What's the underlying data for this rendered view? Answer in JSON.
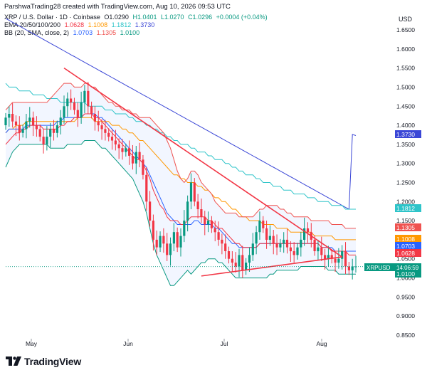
{
  "header": {
    "text": "ParshwaTrading28 created with TradingView.com, Aug 10, 2026 09:53 UTC"
  },
  "legend": {
    "symbol": {
      "label": "XRP / U.S. Dollar · 1D · Coinbase",
      "o": "O1.0290",
      "h": "H1.0401",
      "l": "L1.0270",
      "c": "C1.0296",
      "chg": "+0.0004 (+0.04%)"
    },
    "ema": {
      "label": "EMA 20/50/100/200",
      "v20": "1.0628",
      "v50": "1.1008",
      "v100": "1.1812",
      "v200": "1.3730"
    },
    "bb": {
      "label": "BB (20, SMA, close, 2)",
      "basis": "1.0703",
      "upper": "1.1305",
      "lower": "1.0100"
    }
  },
  "axis": {
    "currency": "USD",
    "y_ticks": [
      "1.6500",
      "1.6000",
      "1.5500",
      "1.5000",
      "1.4500",
      "1.4000",
      "1.3500",
      "1.3000",
      "1.2500",
      "1.2000",
      "1.1500",
      "1.1000",
      "1.0500",
      "1.0000",
      "0.9500",
      "0.9000",
      "0.8500"
    ],
    "x_ticks": [
      "May",
      "Jun",
      "Jul",
      "Aug"
    ]
  },
  "price_tags": [
    {
      "text": "1.3730",
      "color": "#3a46d6"
    },
    {
      "text": "1.1812",
      "color": "#2ec4c9"
    },
    {
      "text": "1.1305",
      "color": "#ef5350"
    },
    {
      "text": "1.1008",
      "color": "#ff9800"
    },
    {
      "text": "1.0703",
      "color": "#2962ff"
    },
    {
      "text": "1.0628",
      "color": "#f23645"
    },
    {
      "text": "1.0100",
      "color": "#089981"
    }
  ],
  "symbol_tag": {
    "label": "XRPUSD",
    "price": "14:06:59",
    "color": "#089981"
  },
  "brand": {
    "name": "TradingView"
  },
  "chart_data": {
    "type": "candlestick",
    "ylim": [
      0.83,
      1.68
    ],
    "y_scale": "linear",
    "grid": false,
    "colors": {
      "up": "#089981",
      "down": "#f23645",
      "ema20": "#f23645",
      "ema50": "#ff9800",
      "ema100": "#2ec4c9",
      "ema200": "#3a46d6",
      "bb_basis": "#2962ff",
      "bb_upper": "#ef5350",
      "bb_lower": "#089981",
      "trendline": "#f23645"
    },
    "close": [
      1.42,
      1.43,
      1.41,
      1.4,
      1.38,
      1.39,
      1.41,
      1.42,
      1.4,
      1.39,
      1.37,
      1.35,
      1.37,
      1.39,
      1.38,
      1.4,
      1.42,
      1.45,
      1.47,
      1.46,
      1.44,
      1.42,
      1.46,
      1.49,
      1.45,
      1.43,
      1.41,
      1.4,
      1.39,
      1.38,
      1.37,
      1.36,
      1.35,
      1.34,
      1.33,
      1.34,
      1.32,
      1.3,
      1.33,
      1.31,
      1.27,
      1.2,
      1.15,
      1.1,
      1.08,
      1.11,
      1.09,
      1.06,
      1.09,
      1.12,
      1.08,
      1.11,
      1.15,
      1.2,
      1.25,
      1.2,
      1.18,
      1.16,
      1.14,
      1.15,
      1.13,
      1.12,
      1.1,
      1.09,
      1.07,
      1.05,
      1.04,
      1.03,
      1.06,
      1.02,
      1.04,
      1.06,
      1.09,
      1.12,
      1.15,
      1.13,
      1.1,
      1.11,
      1.09,
      1.08,
      1.09,
      1.1,
      1.08,
      1.07,
      1.06,
      1.08,
      1.1,
      1.13,
      1.12,
      1.1,
      1.07,
      1.08,
      1.06,
      1.05,
      1.06,
      1.05,
      1.04,
      1.05,
      1.07,
      1.03,
      1.02,
      1.03,
      1.03
    ],
    "ema20": [
      1.35,
      1.36,
      1.37,
      1.38,
      1.38,
      1.39,
      1.39,
      1.4,
      1.4,
      1.4,
      1.4,
      1.39,
      1.39,
      1.39,
      1.39,
      1.39,
      1.4,
      1.4,
      1.41,
      1.41,
      1.42,
      1.42,
      1.42,
      1.43,
      1.43,
      1.43,
      1.42,
      1.42,
      1.41,
      1.4,
      1.39,
      1.38,
      1.37,
      1.36,
      1.35,
      1.34,
      1.33,
      1.32,
      1.31,
      1.31,
      1.3,
      1.28,
      1.26,
      1.23,
      1.21,
      1.19,
      1.18,
      1.16,
      1.15,
      1.15,
      1.15,
      1.14,
      1.14,
      1.15,
      1.16,
      1.16,
      1.16,
      1.16,
      1.16,
      1.15,
      1.15,
      1.14,
      1.13,
      1.13,
      1.12,
      1.11,
      1.1,
      1.09,
      1.09,
      1.08,
      1.08,
      1.08,
      1.08,
      1.08,
      1.09,
      1.09,
      1.09,
      1.09,
      1.09,
      1.09,
      1.09,
      1.09,
      1.09,
      1.09,
      1.09,
      1.09,
      1.09,
      1.09,
      1.09,
      1.09,
      1.09,
      1.09,
      1.08,
      1.08,
      1.08,
      1.07,
      1.07,
      1.07,
      1.07,
      1.07,
      1.06,
      1.06,
      1.06
    ],
    "ema50": [
      1.38,
      1.39,
      1.39,
      1.4,
      1.4,
      1.4,
      1.41,
      1.41,
      1.41,
      1.41,
      1.41,
      1.41,
      1.41,
      1.41,
      1.41,
      1.41,
      1.41,
      1.41,
      1.41,
      1.41,
      1.41,
      1.42,
      1.42,
      1.42,
      1.42,
      1.42,
      1.41,
      1.41,
      1.41,
      1.41,
      1.41,
      1.4,
      1.4,
      1.4,
      1.39,
      1.39,
      1.38,
      1.38,
      1.37,
      1.36,
      1.36,
      1.35,
      1.34,
      1.33,
      1.32,
      1.31,
      1.3,
      1.29,
      1.28,
      1.27,
      1.27,
      1.26,
      1.26,
      1.25,
      1.25,
      1.25,
      1.24,
      1.24,
      1.23,
      1.23,
      1.22,
      1.21,
      1.21,
      1.2,
      1.2,
      1.19,
      1.18,
      1.18,
      1.17,
      1.16,
      1.16,
      1.15,
      1.15,
      1.15,
      1.15,
      1.14,
      1.14,
      1.14,
      1.14,
      1.13,
      1.13,
      1.13,
      1.13,
      1.12,
      1.12,
      1.12,
      1.12,
      1.12,
      1.12,
      1.12,
      1.11,
      1.11,
      1.11,
      1.11,
      1.11,
      1.11,
      1.1,
      1.1,
      1.1,
      1.1,
      1.1,
      1.1,
      1.1
    ],
    "ema100": [
      1.51,
      1.5,
      1.5,
      1.5,
      1.49,
      1.49,
      1.49,
      1.49,
      1.48,
      1.48,
      1.48,
      1.48,
      1.47,
      1.47,
      1.47,
      1.47,
      1.46,
      1.46,
      1.46,
      1.46,
      1.46,
      1.46,
      1.46,
      1.46,
      1.45,
      1.45,
      1.45,
      1.45,
      1.45,
      1.44,
      1.44,
      1.44,
      1.43,
      1.43,
      1.43,
      1.43,
      1.42,
      1.42,
      1.41,
      1.41,
      1.41,
      1.4,
      1.4,
      1.39,
      1.39,
      1.38,
      1.38,
      1.37,
      1.37,
      1.36,
      1.36,
      1.35,
      1.35,
      1.35,
      1.34,
      1.34,
      1.33,
      1.33,
      1.33,
      1.32,
      1.32,
      1.31,
      1.31,
      1.31,
      1.3,
      1.3,
      1.29,
      1.29,
      1.28,
      1.28,
      1.27,
      1.27,
      1.27,
      1.26,
      1.26,
      1.25,
      1.25,
      1.25,
      1.24,
      1.24,
      1.24,
      1.23,
      1.23,
      1.23,
      1.22,
      1.22,
      1.22,
      1.22,
      1.21,
      1.21,
      1.21,
      1.2,
      1.2,
      1.2,
      1.2,
      1.19,
      1.19,
      1.19,
      1.19,
      1.18,
      1.18,
      1.18,
      1.18
    ],
    "ema200": [
      1.68,
      1.675,
      1.67,
      1.665,
      1.66,
      1.655,
      1.65,
      1.645,
      1.64,
      1.635,
      1.63,
      1.625,
      1.62,
      1.615,
      1.61,
      1.605,
      1.6,
      1.595,
      1.59,
      1.585,
      1.58,
      1.575,
      1.57,
      1.565,
      1.56,
      1.555,
      1.55,
      1.545,
      1.54,
      1.535,
      1.53,
      1.525,
      1.52,
      1.515,
      1.51,
      1.505,
      1.5,
      1.495,
      1.49,
      1.485,
      1.48,
      1.475,
      1.47,
      1.465,
      1.46,
      1.455,
      1.45,
      1.445,
      1.44,
      1.435,
      1.43,
      1.425,
      1.42,
      1.415,
      1.41,
      1.405,
      1.4,
      1.395,
      1.39,
      1.385,
      1.38,
      1.375,
      1.37,
      1.365,
      1.36,
      1.355,
      1.35,
      1.345,
      1.34,
      1.335,
      1.33,
      1.325,
      1.32,
      1.315,
      1.31,
      1.305,
      1.3,
      1.295,
      1.29,
      1.285,
      1.28,
      1.275,
      1.27,
      1.265,
      1.26,
      1.255,
      1.25,
      1.245,
      1.24,
      1.235,
      1.23,
      1.225,
      1.22,
      1.215,
      1.21,
      1.205,
      1.2,
      1.195,
      1.19,
      1.185,
      1.18,
      1.376,
      1.373
    ],
    "bb_upper": [
      1.44,
      1.45,
      1.46,
      1.46,
      1.46,
      1.46,
      1.46,
      1.46,
      1.46,
      1.46,
      1.46,
      1.46,
      1.46,
      1.47,
      1.48,
      1.49,
      1.5,
      1.51,
      1.51,
      1.51,
      1.5,
      1.5,
      1.5,
      1.51,
      1.51,
      1.5,
      1.5,
      1.49,
      1.48,
      1.47,
      1.46,
      1.46,
      1.45,
      1.45,
      1.44,
      1.44,
      1.44,
      1.43,
      1.43,
      1.42,
      1.42,
      1.42,
      1.42,
      1.41,
      1.4,
      1.39,
      1.38,
      1.36,
      1.34,
      1.31,
      1.28,
      1.26,
      1.25,
      1.26,
      1.28,
      1.28,
      1.27,
      1.25,
      1.24,
      1.23,
      1.22,
      1.2,
      1.19,
      1.18,
      1.17,
      1.17,
      1.17,
      1.17,
      1.16,
      1.16,
      1.16,
      1.16,
      1.16,
      1.17,
      1.18,
      1.18,
      1.19,
      1.19,
      1.19,
      1.19,
      1.18,
      1.18,
      1.17,
      1.17,
      1.16,
      1.16,
      1.16,
      1.16,
      1.16,
      1.15,
      1.15,
      1.15,
      1.15,
      1.15,
      1.15,
      1.14,
      1.14,
      1.14,
      1.14,
      1.13,
      1.13,
      1.13,
      1.13
    ],
    "bb_basis": [
      1.38,
      1.39,
      1.39,
      1.39,
      1.39,
      1.39,
      1.4,
      1.4,
      1.4,
      1.4,
      1.4,
      1.4,
      1.4,
      1.4,
      1.4,
      1.41,
      1.41,
      1.42,
      1.42,
      1.42,
      1.42,
      1.42,
      1.42,
      1.43,
      1.43,
      1.43,
      1.43,
      1.42,
      1.42,
      1.41,
      1.4,
      1.39,
      1.38,
      1.37,
      1.36,
      1.35,
      1.34,
      1.33,
      1.32,
      1.31,
      1.3,
      1.29,
      1.27,
      1.25,
      1.23,
      1.21,
      1.19,
      1.17,
      1.16,
      1.15,
      1.14,
      1.14,
      1.14,
      1.14,
      1.14,
      1.15,
      1.15,
      1.14,
      1.14,
      1.14,
      1.14,
      1.13,
      1.13,
      1.12,
      1.11,
      1.1,
      1.09,
      1.09,
      1.08,
      1.08,
      1.08,
      1.08,
      1.08,
      1.08,
      1.09,
      1.09,
      1.09,
      1.09,
      1.09,
      1.09,
      1.09,
      1.09,
      1.09,
      1.09,
      1.09,
      1.09,
      1.09,
      1.09,
      1.09,
      1.09,
      1.09,
      1.09,
      1.08,
      1.08,
      1.08,
      1.08,
      1.07,
      1.07,
      1.07,
      1.07,
      1.07,
      1.07,
      1.07
    ],
    "bb_lower": [
      1.29,
      1.31,
      1.33,
      1.34,
      1.35,
      1.35,
      1.35,
      1.35,
      1.35,
      1.35,
      1.35,
      1.35,
      1.35,
      1.34,
      1.34,
      1.34,
      1.34,
      1.34,
      1.35,
      1.35,
      1.35,
      1.35,
      1.35,
      1.36,
      1.36,
      1.36,
      1.36,
      1.35,
      1.34,
      1.34,
      1.33,
      1.32,
      1.31,
      1.3,
      1.29,
      1.28,
      1.27,
      1.26,
      1.24,
      1.22,
      1.2,
      1.17,
      1.13,
      1.09,
      1.06,
      1.04,
      1.02,
      1.0,
      0.98,
      0.98,
      0.99,
      1.0,
      1.01,
      1.02,
      1.01,
      1.02,
      1.03,
      1.04,
      1.04,
      1.05,
      1.05,
      1.05,
      1.04,
      1.04,
      1.03,
      1.02,
      1.01,
      1.0,
      1.0,
      1.0,
      1.0,
      1.0,
      1.0,
      1.0,
      1.0,
      1.0,
      1.0,
      1.01,
      1.01,
      1.02,
      1.02,
      1.02,
      1.02,
      1.02,
      1.02,
      1.02,
      1.03,
      1.03,
      1.03,
      1.03,
      1.03,
      1.03,
      1.03,
      1.03,
      1.02,
      1.02,
      1.02,
      1.01,
      1.01,
      1.01,
      1.01,
      1.01,
      1.01
    ],
    "trendline_upper": [
      [
        17,
        1.55
      ],
      [
        98,
        1.055
      ]
    ],
    "trendline_lower": [
      [
        57,
        1.005
      ],
      [
        98,
        1.055
      ]
    ]
  }
}
